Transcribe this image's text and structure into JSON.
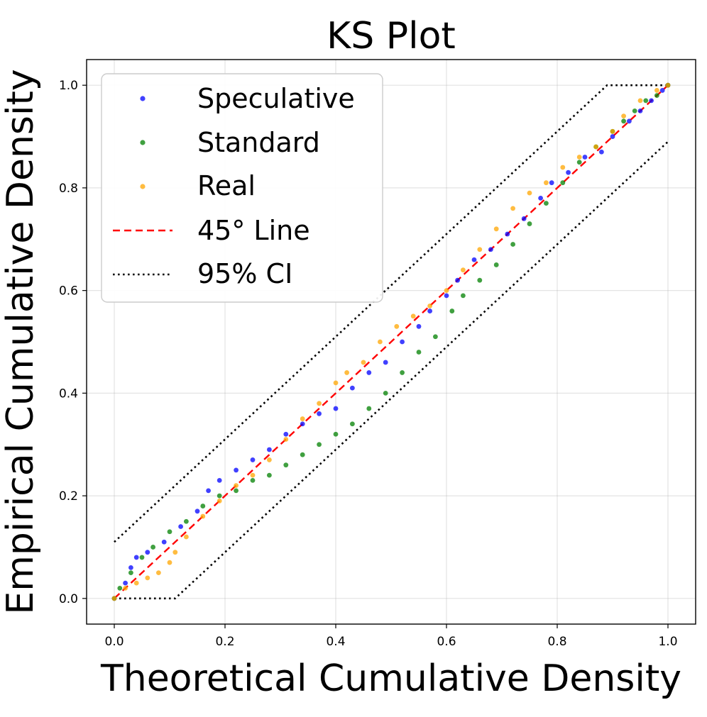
{
  "chart_data": {
    "type": "scatter",
    "title": "KS Plot",
    "xlabel": "Theoretical Cumulative Density",
    "ylabel": "Empirical Cumulative Density",
    "xlim": [
      -0.05,
      1.05
    ],
    "ylim": [
      -0.05,
      1.05
    ],
    "grid": true,
    "legend_position": "top-left",
    "x_ticks": [
      0.0,
      0.2,
      0.4,
      0.6,
      0.8,
      1.0
    ],
    "y_ticks": [
      0.0,
      0.2,
      0.4,
      0.6,
      0.8,
      1.0
    ],
    "x_tick_labels": [
      "0.0",
      "0.2",
      "0.4",
      "0.6",
      "0.8",
      "1.0"
    ],
    "y_tick_labels": [
      "0.0",
      "0.2",
      "0.4",
      "0.6",
      "0.8",
      "1.0"
    ],
    "series": [
      {
        "name": "Speculative",
        "kind": "points",
        "color": "#0000ff",
        "points": [
          [
            0.0,
            0.0
          ],
          [
            0.02,
            0.03
          ],
          [
            0.03,
            0.06
          ],
          [
            0.04,
            0.08
          ],
          [
            0.06,
            0.09
          ],
          [
            0.09,
            0.11
          ],
          [
            0.12,
            0.14
          ],
          [
            0.15,
            0.17
          ],
          [
            0.17,
            0.21
          ],
          [
            0.19,
            0.23
          ],
          [
            0.22,
            0.25
          ],
          [
            0.25,
            0.27
          ],
          [
            0.28,
            0.29
          ],
          [
            0.31,
            0.32
          ],
          [
            0.34,
            0.34
          ],
          [
            0.37,
            0.36
          ],
          [
            0.4,
            0.37
          ],
          [
            0.43,
            0.41
          ],
          [
            0.46,
            0.44
          ],
          [
            0.49,
            0.46
          ],
          [
            0.52,
            0.5
          ],
          [
            0.55,
            0.53
          ],
          [
            0.57,
            0.56
          ],
          [
            0.6,
            0.59
          ],
          [
            0.62,
            0.62
          ],
          [
            0.65,
            0.66
          ],
          [
            0.68,
            0.68
          ],
          [
            0.71,
            0.71
          ],
          [
            0.74,
            0.74
          ],
          [
            0.77,
            0.78
          ],
          [
            0.79,
            0.81
          ],
          [
            0.82,
            0.83
          ],
          [
            0.85,
            0.86
          ],
          [
            0.88,
            0.87
          ],
          [
            0.9,
            0.9
          ],
          [
            0.93,
            0.93
          ],
          [
            0.95,
            0.95
          ],
          [
            0.97,
            0.97
          ],
          [
            0.99,
            0.99
          ],
          [
            1.0,
            1.0
          ]
        ]
      },
      {
        "name": "Standard",
        "kind": "points",
        "color": "#008000",
        "points": [
          [
            0.0,
            0.0
          ],
          [
            0.01,
            0.02
          ],
          [
            0.03,
            0.05
          ],
          [
            0.05,
            0.08
          ],
          [
            0.07,
            0.1
          ],
          [
            0.1,
            0.13
          ],
          [
            0.13,
            0.15
          ],
          [
            0.16,
            0.18
          ],
          [
            0.19,
            0.2
          ],
          [
            0.22,
            0.21
          ],
          [
            0.25,
            0.23
          ],
          [
            0.28,
            0.24
          ],
          [
            0.31,
            0.26
          ],
          [
            0.34,
            0.28
          ],
          [
            0.37,
            0.3
          ],
          [
            0.4,
            0.32
          ],
          [
            0.43,
            0.34
          ],
          [
            0.46,
            0.37
          ],
          [
            0.49,
            0.4
          ],
          [
            0.52,
            0.44
          ],
          [
            0.55,
            0.48
          ],
          [
            0.58,
            0.51
          ],
          [
            0.61,
            0.56
          ],
          [
            0.63,
            0.59
          ],
          [
            0.66,
            0.62
          ],
          [
            0.69,
            0.65
          ],
          [
            0.72,
            0.69
          ],
          [
            0.75,
            0.73
          ],
          [
            0.78,
            0.77
          ],
          [
            0.81,
            0.81
          ],
          [
            0.84,
            0.85
          ],
          [
            0.87,
            0.88
          ],
          [
            0.9,
            0.91
          ],
          [
            0.92,
            0.93
          ],
          [
            0.94,
            0.95
          ],
          [
            0.96,
            0.97
          ],
          [
            0.98,
            0.98
          ],
          [
            1.0,
            1.0
          ]
        ]
      },
      {
        "name": "Real",
        "kind": "points",
        "color": "#ffa500",
        "points": [
          [
            0.0,
            0.0
          ],
          [
            0.02,
            0.02
          ],
          [
            0.04,
            0.03
          ],
          [
            0.06,
            0.04
          ],
          [
            0.08,
            0.05
          ],
          [
            0.1,
            0.07
          ],
          [
            0.11,
            0.09
          ],
          [
            0.13,
            0.12
          ],
          [
            0.16,
            0.16
          ],
          [
            0.19,
            0.19
          ],
          [
            0.22,
            0.22
          ],
          [
            0.25,
            0.24
          ],
          [
            0.28,
            0.27
          ],
          [
            0.31,
            0.31
          ],
          [
            0.34,
            0.35
          ],
          [
            0.37,
            0.38
          ],
          [
            0.4,
            0.42
          ],
          [
            0.42,
            0.44
          ],
          [
            0.45,
            0.46
          ],
          [
            0.48,
            0.5
          ],
          [
            0.51,
            0.53
          ],
          [
            0.54,
            0.55
          ],
          [
            0.57,
            0.57
          ],
          [
            0.6,
            0.6
          ],
          [
            0.63,
            0.64
          ],
          [
            0.66,
            0.68
          ],
          [
            0.69,
            0.72
          ],
          [
            0.72,
            0.76
          ],
          [
            0.75,
            0.79
          ],
          [
            0.78,
            0.81
          ],
          [
            0.81,
            0.84
          ],
          [
            0.84,
            0.86
          ],
          [
            0.87,
            0.88
          ],
          [
            0.9,
            0.91
          ],
          [
            0.92,
            0.94
          ],
          [
            0.95,
            0.97
          ],
          [
            0.98,
            0.99
          ],
          [
            1.0,
            1.0
          ]
        ]
      },
      {
        "name": "45° Line",
        "kind": "line",
        "style": "dashed",
        "color": "#ff0000",
        "points": [
          [
            0.0,
            0.0
          ],
          [
            1.0,
            1.0
          ]
        ]
      },
      {
        "name": "95% CI",
        "kind": "line",
        "style": "dotted",
        "color": "#000000",
        "upper": [
          [
            0.0,
            0.11
          ],
          [
            0.89,
            1.0
          ],
          [
            1.0,
            1.0
          ]
        ],
        "lower": [
          [
            0.0,
            0.0
          ],
          [
            0.11,
            0.0
          ],
          [
            1.0,
            0.89
          ]
        ]
      }
    ]
  }
}
